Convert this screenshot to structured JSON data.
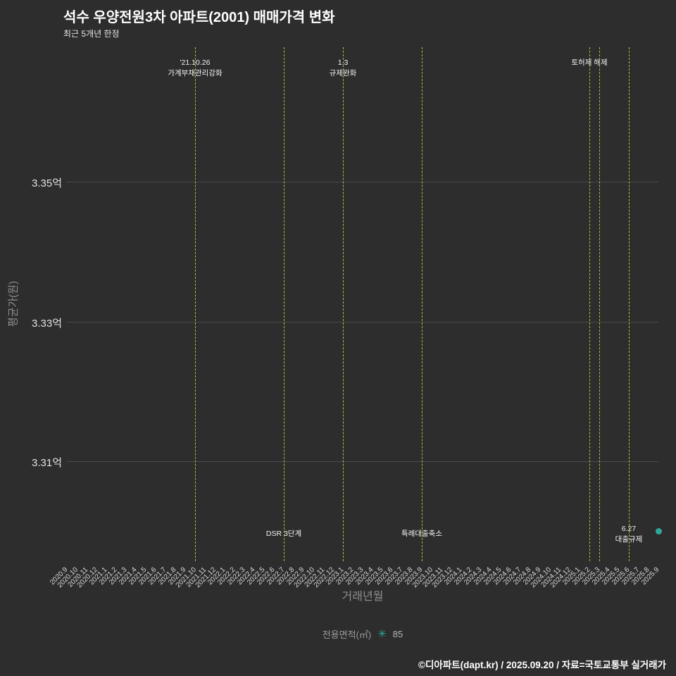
{
  "header": {
    "title": "석수 우양전원3차 아파트(2001) 매매가격 변화",
    "subtitle": "최근 5개년 한정"
  },
  "chart_data": {
    "type": "scatter",
    "title": "석수 우양전원3차 아파트(2001) 매매가격 변화",
    "subtitle": "최근 5개년 한정",
    "xlabel": "거래년월",
    "ylabel": "평균가(원)",
    "grid": true,
    "legend_position": "bottom",
    "x_ticks": [
      "2020.9",
      "2020.10",
      "2020.11",
      "2020.12",
      "2021.1",
      "2021.2",
      "2021.3",
      "2021.4",
      "2021.5",
      "2021.6",
      "2021.7",
      "2021.8",
      "2021.9",
      "2021.10",
      "2021.11",
      "2021.12",
      "2022.1",
      "2022.2",
      "2022.3",
      "2022.4",
      "2022.5",
      "2022.6",
      "2022.7",
      "2022.8",
      "2022.9",
      "2022.10",
      "2022.11",
      "2022.12",
      "2023.1",
      "2023.2",
      "2023.3",
      "2023.4",
      "2023.5",
      "2023.6",
      "2023.7",
      "2023.8",
      "2023.9",
      "2023.10",
      "2023.11",
      "2023.12",
      "2024.1",
      "2024.2",
      "2024.3",
      "2024.4",
      "2024.5",
      "2024.6",
      "2024.7",
      "2024.8",
      "2024.9",
      "2024.10",
      "2024.11",
      "2024.12",
      "2025.1",
      "2025.2",
      "2025.3",
      "2025.4",
      "2025.5",
      "2025.6",
      "2025.7",
      "2025.8",
      "2025.9"
    ],
    "y_ticks": [
      {
        "label": "3.35억",
        "value": 3.35
      },
      {
        "label": "3.33억",
        "value": 3.33
      },
      {
        "label": "3.31억",
        "value": 3.31
      }
    ],
    "ylim_eok": [
      3.296,
      3.369
    ],
    "series": [
      {
        "name": "85",
        "marker": "circle",
        "color": "#2fa79a",
        "points": [
          {
            "x": "2025.9",
            "y_eok": 3.3,
            "y_label": "3.3억"
          }
        ]
      }
    ],
    "annotations": [
      {
        "month": "2021.10",
        "label_lines": [
          "'21.10.26",
          "가계부채관리강화"
        ],
        "label_position": "top"
      },
      {
        "month": "2022.7",
        "label_lines": [
          "DSR 3단계"
        ],
        "label_position": "bottom"
      },
      {
        "month": "2023.1",
        "label_lines": [
          "1.3",
          "규제완화"
        ],
        "label_position": "top"
      },
      {
        "month": "2023.9",
        "label_lines": [
          "특례대출축소"
        ],
        "label_position": "bottom"
      },
      {
        "month": "2025.2",
        "label_lines": [
          "토허제 해제"
        ],
        "label_position": "top"
      },
      {
        "month": "2025.3",
        "label_lines": [],
        "label_position": "none"
      },
      {
        "month": "2025.6",
        "label_lines": [
          "6.27",
          "대출규제"
        ],
        "label_position": "bottom"
      }
    ]
  },
  "legend": {
    "label": "전용면적(㎡)",
    "marker_glyph": "✳",
    "marker_color": "#2fa79a",
    "value": "85"
  },
  "footer": "©디아파트(dapt.kr) / 2025.09.20 / 자료=국토교통부 실거래가",
  "colors": {
    "background": "#2d2d2d",
    "grid_line": "#4a4a4a",
    "event_line": "#b8b83a",
    "title_text": "#ffffff",
    "tick_text": "#d9d9d9",
    "axis_label_text": "#8f8f8f",
    "annotation_text": "#f2f2f2",
    "point": "#2fa79a"
  }
}
